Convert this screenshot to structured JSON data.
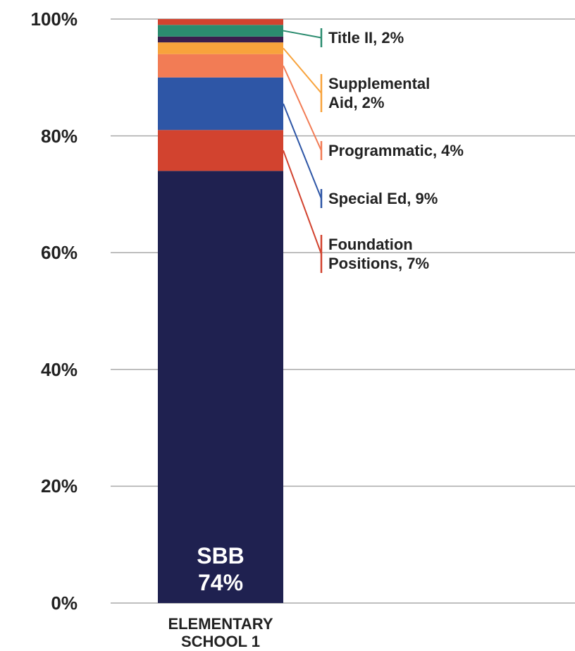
{
  "chart_data": {
    "type": "stacked_bar",
    "categories": [
      "ELEMENTARY\nSCHOOL 1"
    ],
    "ylim": [
      0,
      100
    ],
    "yticks": [
      {
        "value": 0,
        "label": "0%"
      },
      {
        "value": 20,
        "label": "20%"
      },
      {
        "value": 40,
        "label": "40%"
      },
      {
        "value": 60,
        "label": "60%"
      },
      {
        "value": 80,
        "label": "80%"
      },
      {
        "value": 100,
        "label": "100%"
      }
    ],
    "grid": true,
    "series": [
      {
        "color": "#1f2150",
        "values": [
          74
        ],
        "value_labels": [
          "SBB\n74%"
        ]
      },
      {
        "color": "#d2432f",
        "values": [
          7
        ],
        "value_labels": [
          "Foundation\nPositions, 7%"
        ]
      },
      {
        "color": "#2e56a6",
        "values": [
          9
        ],
        "value_labels": [
          "Special Ed, 9%"
        ]
      },
      {
        "color": "#f27c55",
        "values": [
          4
        ],
        "value_labels": [
          "Programmatic, 4%"
        ]
      },
      {
        "color": "#f8a33c",
        "values": [
          2
        ],
        "value_labels": [
          "Supplemental\nAid, 2%"
        ]
      },
      {
        "color": "#3a1e4d",
        "values": [
          1
        ]
      },
      {
        "color": "#2b8c6f",
        "values": [
          2
        ],
        "value_labels": [
          "Title II, 2%"
        ]
      },
      {
        "color": "#d2432f",
        "values": [
          1
        ]
      }
    ]
  }
}
